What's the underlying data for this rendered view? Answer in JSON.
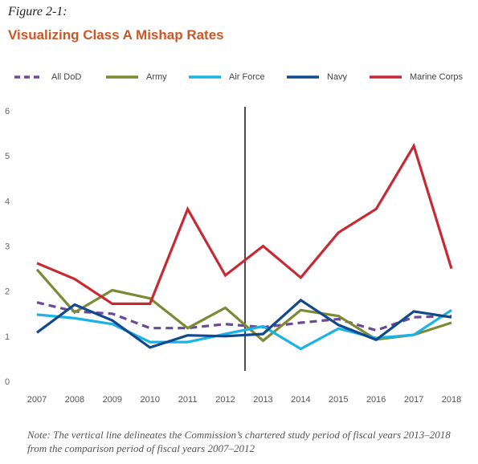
{
  "figure": {
    "label": "Figure 2-1:",
    "title": "Visualizing Class A Mishap Rates",
    "note": "Note: The vertical line delineates the Commission’s chartered study period of fiscal years 2013–2018 from the comparison period of fiscal years 2007–2012"
  },
  "chart_data": {
    "type": "line",
    "x": [
      "2007",
      "2008",
      "2009",
      "2010",
      "2011",
      "2012",
      "2013",
      "2014",
      "2015",
      "2016",
      "2017",
      "2018"
    ],
    "ylim": [
      0,
      6
    ],
    "yticks": [
      "0",
      "1",
      "2",
      "3",
      "4",
      "5",
      "6"
    ],
    "grid": false,
    "legend_position": "top",
    "divider_between": [
      "2012",
      "2013"
    ],
    "series": [
      {
        "name": "All DoD",
        "color": "#6b4a93",
        "dashed": true,
        "values": [
          1.75,
          1.55,
          1.5,
          1.18,
          1.18,
          1.27,
          1.2,
          1.3,
          1.38,
          1.13,
          1.42,
          1.45
        ]
      },
      {
        "name": "Army",
        "color": "#7b8a33",
        "dashed": false,
        "values": [
          2.48,
          1.53,
          2.02,
          1.84,
          1.18,
          1.63,
          0.9,
          1.58,
          1.45,
          0.93,
          1.03,
          1.3
        ]
      },
      {
        "name": "Air Force",
        "color": "#1ab3e6",
        "dashed": false,
        "values": [
          1.48,
          1.4,
          1.27,
          0.87,
          0.87,
          1.05,
          1.22,
          0.72,
          1.17,
          0.96,
          1.03,
          1.58
        ]
      },
      {
        "name": "Navy",
        "color": "#12498c",
        "dashed": false,
        "values": [
          1.08,
          1.7,
          1.35,
          0.75,
          1.02,
          1.0,
          1.05,
          1.8,
          1.25,
          0.92,
          1.55,
          1.42
        ]
      },
      {
        "name": "Marine Corps",
        "color": "#c82a33",
        "dashed": false,
        "values": [
          2.62,
          2.27,
          1.72,
          1.72,
          3.82,
          2.35,
          3.0,
          2.3,
          3.3,
          3.82,
          5.22,
          2.5
        ]
      }
    ]
  }
}
